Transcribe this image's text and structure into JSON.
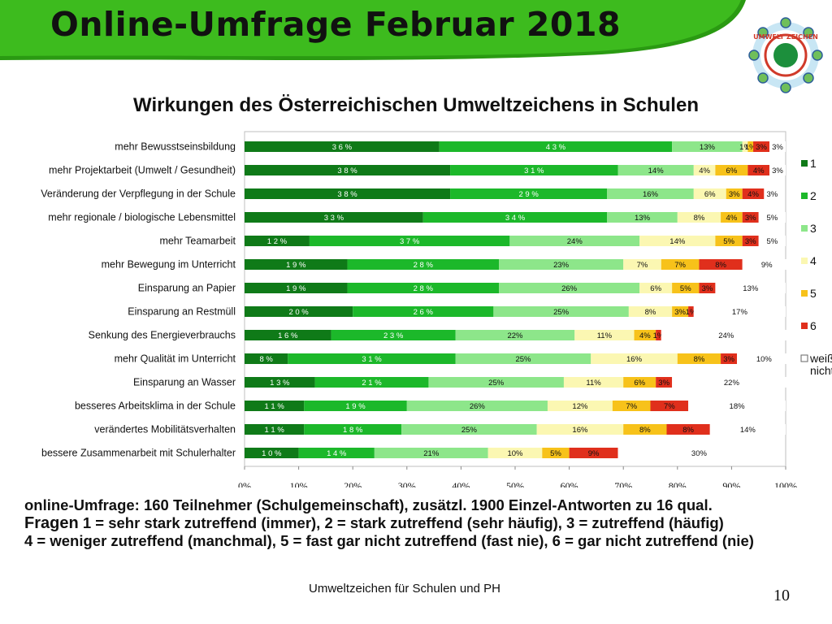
{
  "header": {
    "title": "Online-Umfrage Februar 2018"
  },
  "logo": {
    "name": "umweltzeichen-logo",
    "text": "UMWELT ZEICHEN"
  },
  "chart_data": {
    "type": "bar",
    "orientation": "horizontal",
    "stacked": "percent",
    "title": "Wirkungen des Österreichischen Umweltzeichens in Schulen",
    "xlabel": "",
    "ylabel": "",
    "xlim": [
      0,
      100
    ],
    "x_ticks": [
      "0%",
      "10%",
      "20%",
      "30%",
      "40%",
      "50%",
      "60%",
      "70%",
      "80%",
      "90%",
      "100%"
    ],
    "legend_position": "right",
    "categories": [
      "mehr Bewusstseinsbildung",
      "mehr Projektarbeit (Umwelt / Gesundheit)",
      "Veränderung der Verpflegung in der Schule",
      "mehr regionale / biologische Lebensmittel",
      "mehr Teamarbeit",
      "mehr Bewegung im Unterricht",
      "Einsparung an Papier",
      "Einsparung an Restmüll",
      "Senkung des Energieverbrauchs",
      "mehr Qualität im Unterricht",
      "Einsparung an Wasser",
      "besseres Arbeitsklima in der Schule",
      "verändertes Mobilitätsverhalten",
      "bessere Zusammenarbeit mit Schulerhalter"
    ],
    "series": [
      {
        "name": "1",
        "color": "#0f7a18",
        "text_color": "#ffffff",
        "values": [
          36,
          38,
          38,
          33,
          12,
          19,
          19,
          20,
          16,
          8,
          13,
          11,
          11,
          10
        ],
        "labels": [
          "3 6 %",
          "3 8 %",
          "3 8 %",
          "3 3 %",
          "1 2 %",
          "1 9 %",
          "1 9 %",
          "2 0 %",
          "1 6 %",
          "8 %",
          "1 3 %",
          "1 1 %",
          "1 1 %",
          "1 0 %"
        ]
      },
      {
        "name": "2",
        "color": "#1cb82a",
        "text_color": "#ffffff",
        "values": [
          43,
          31,
          29,
          34,
          37,
          28,
          28,
          26,
          23,
          31,
          21,
          19,
          18,
          14
        ],
        "labels": [
          "4 3 %",
          "3 1 %",
          "2 9 %",
          "3 4 %",
          "3 7 %",
          "2 8 %",
          "2 8 %",
          "2 6 %",
          "2 3 %",
          "3 1 %",
          "2 1 %",
          "1 9 %",
          "1 8 %",
          "1 4 %"
        ]
      },
      {
        "name": "3",
        "color": "#8de68a",
        "text_color": "#111111",
        "values": [
          13,
          14,
          16,
          13,
          24,
          23,
          26,
          25,
          22,
          25,
          25,
          26,
          25,
          21
        ],
        "labels": [
          "13%",
          "14%",
          "16%",
          "13%",
          "24%",
          "23%",
          "26%",
          "25%",
          "22%",
          "25%",
          "25%",
          "26%",
          "25%",
          "21%"
        ]
      },
      {
        "name": "4",
        "color": "#fbf7b2",
        "text_color": "#111111",
        "values": [
          1,
          4,
          6,
          8,
          14,
          7,
          6,
          8,
          11,
          16,
          11,
          12,
          16,
          10
        ],
        "labels": [
          "1%",
          "4%",
          "6%",
          "8%",
          "14%",
          "7%",
          "6%",
          "8%",
          "11%",
          "16%",
          "11%",
          "12%",
          "16%",
          "10%"
        ]
      },
      {
        "name": "5",
        "color": "#f7c21a",
        "text_color": "#111111",
        "values": [
          1,
          6,
          3,
          4,
          5,
          7,
          5,
          3,
          4,
          8,
          6,
          7,
          8,
          5
        ],
        "labels": [
          "1%",
          "6%",
          "3%",
          "4%",
          "5%",
          "7%",
          "5%",
          "3%",
          "4%",
          "8%",
          "6%",
          "7%",
          "8%",
          "5%"
        ]
      },
      {
        "name": "6",
        "color": "#e02f1c",
        "text_color": "#111111",
        "values": [
          3,
          4,
          4,
          3,
          3,
          8,
          3,
          1,
          1,
          3,
          3,
          7,
          8,
          9
        ],
        "labels": [
          "3%",
          "4%",
          "4%",
          "3%",
          "3%",
          "8%",
          "3%",
          "1%",
          "1%",
          "3%",
          "3%",
          "7%",
          "8%",
          "9%"
        ]
      },
      {
        "name": "weiß nicht",
        "color": "#ffffff",
        "text_color": "#111111",
        "values": [
          3,
          3,
          3,
          5,
          5,
          9,
          13,
          17,
          24,
          10,
          22,
          18,
          14,
          30
        ],
        "labels": [
          "3%",
          "3%",
          "3%",
          "5%",
          "5%",
          "9%",
          "13%",
          "17%",
          "24%",
          "10%",
          "22%",
          "18%",
          "14%",
          "30%"
        ]
      }
    ]
  },
  "footer": {
    "note_line1": "online-Umfrage: 160 Teilnehmer (Schulgemeinschaft), zusätzl. 1900 Einzel-Antworten zu 16 qual.",
    "note_line2_lead": "Fragen",
    "note_line2_rest": " 1 = sehr stark zutreffend (immer), 2 = stark zutreffend (sehr häufig), 3 = zutreffend (häufig)",
    "note_line3": "4 = weniger zutreffend (manchmal), 5 = fast gar nicht zutreffend (fast nie), 6 = gar nicht zutreffend (nie)",
    "source": "Umweltzeichen für Schulen und PH",
    "page_number": "10"
  },
  "colors": {
    "banner_green": "#3dbb1e",
    "banner_green_dark": "#2a9a12"
  }
}
